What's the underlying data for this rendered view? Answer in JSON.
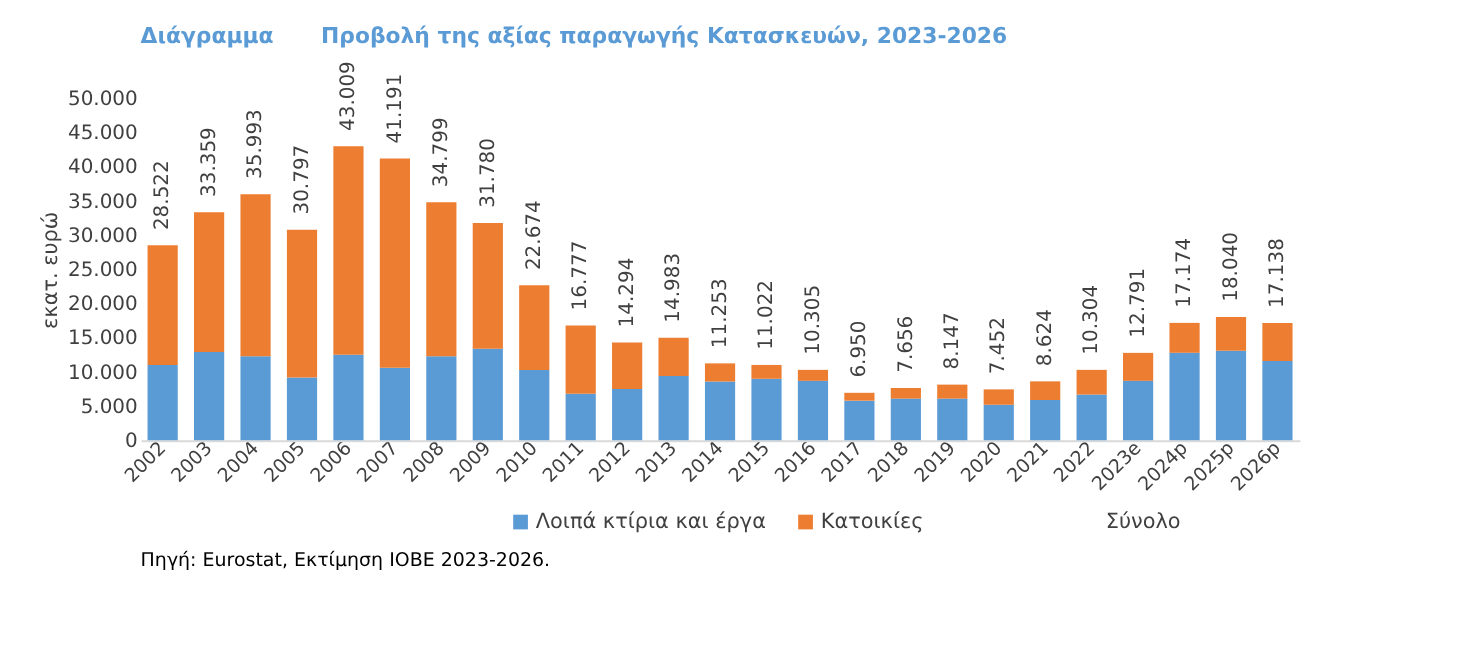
{
  "chart_data": {
    "type": "bar",
    "stacked": true,
    "title": "Προβολή της αξίας παραγωγής Κατασκευών, 2023-2026",
    "subtitle": "Διάγραμμα",
    "ylabel": "εκατ. ευρώ",
    "categories": [
      "2002",
      "2003",
      "2004",
      "2005",
      "2006",
      "2007",
      "2008",
      "2009",
      "2010",
      "2011",
      "2012",
      "2013",
      "2014",
      "2015",
      "2016",
      "2017",
      "2018",
      "2019",
      "2020",
      "2021",
      "2022",
      "2023e",
      "2024p",
      "2025p",
      "2026p"
    ],
    "series": [
      {
        "name": "Λοιπά κτίρια και έργα",
        "color": "#5b9bd5",
        "values": [
          11000,
          12900,
          12300,
          9200,
          12500,
          10600,
          12300,
          13400,
          10300,
          6800,
          7500,
          9400,
          8600,
          9000,
          8700,
          5800,
          6100,
          6100,
          5200,
          5900,
          6700,
          8700,
          12800,
          13100,
          11600
        ]
      },
      {
        "name": "Κατοικίες",
        "color": "#ed7d31",
        "values": [
          17522,
          20459,
          23693,
          21597,
          30509,
          30591,
          22499,
          18380,
          12374,
          9977,
          6794,
          5583,
          2653,
          2022,
          1605,
          1150,
          1556,
          2047,
          2252,
          2724,
          3604,
          4091,
          4374,
          4940,
          5538
        ]
      }
    ],
    "totals": [
      "28.522",
      "33.359",
      "35.993",
      "30.797",
      "43.009",
      "41.191",
      "34.799",
      "31.780",
      "22.674",
      "16.777",
      "14.294",
      "14.983",
      "11.253",
      "11.022",
      "10.305",
      "6.950",
      "7.656",
      "8.147",
      "7.452",
      "8.624",
      "10.304",
      "12.791",
      "17.174",
      "18.040",
      "17.138"
    ],
    "ylim": [
      0,
      50000
    ],
    "yticks": [
      {
        "value": 0,
        "label": "0"
      },
      {
        "value": 5000,
        "label": "5.000"
      },
      {
        "value": 10000,
        "label": "10.000"
      },
      {
        "value": 15000,
        "label": "15.000"
      },
      {
        "value": 20000,
        "label": "20.000"
      },
      {
        "value": 25000,
        "label": "25.000"
      },
      {
        "value": 30000,
        "label": "30.000"
      },
      {
        "value": 35000,
        "label": "35.000"
      },
      {
        "value": 40000,
        "label": "40.000"
      },
      {
        "value": 45000,
        "label": "45.000"
      },
      {
        "value": 50000,
        "label": "50.000"
      }
    ],
    "grid": false,
    "legend": "bottom",
    "annotations": [
      "Σύνολο",
      "Πηγή: Eurostat, Εκτίμηση ΙΟΒΕ 2023-2026."
    ]
  }
}
